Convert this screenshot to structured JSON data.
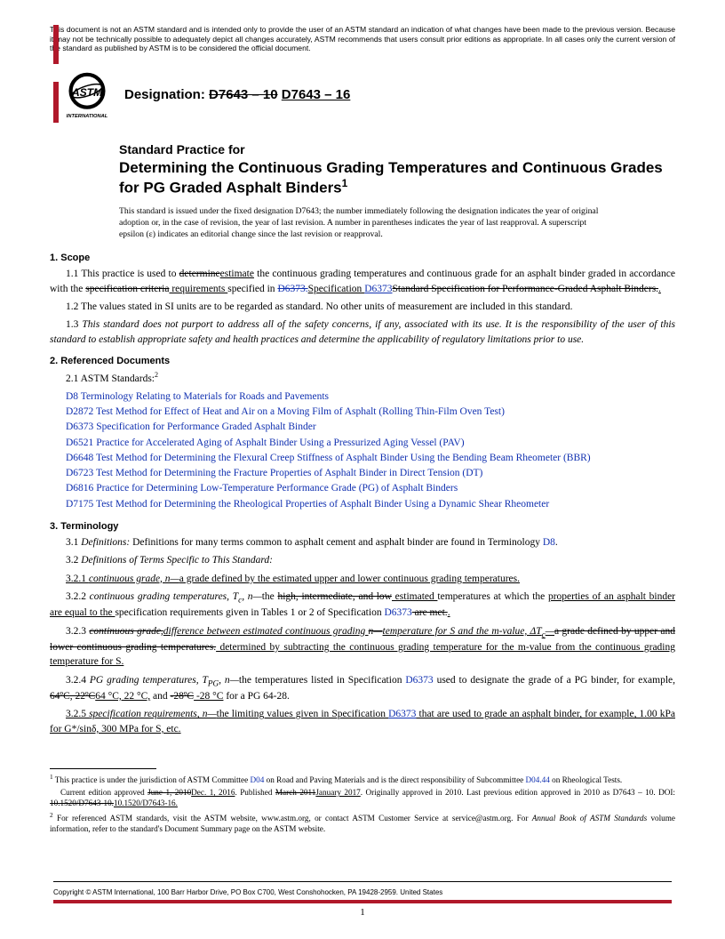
{
  "colors": {
    "red": "#b0182a",
    "link": "#1030b0",
    "text": "#000000",
    "background": "#ffffff"
  },
  "disclaimer": "This document is not an ASTM standard and is intended only to provide the user of an ASTM standard an indication of what changes have been made to the previous version. Because it may not be technically possible to adequately depict all changes accurately, ASTM recommends that users consult prior editions as appropriate. In all cases only the current version of the standard as published by ASTM is to be considered the official document.",
  "designation": {
    "label": "Designation: ",
    "old": "D7643 – 10",
    "sep": " ",
    "new": "D7643 – 16"
  },
  "logo_text": {
    "top": "ASTM",
    "bottom": "INTERNATIONAL"
  },
  "title": {
    "label": "Standard Practice for",
    "text": "Determining the Continuous Grading Temperatures and Continuous Grades for PG Graded Asphalt Binders",
    "sup": "1"
  },
  "title_note": "This standard is issued under the fixed designation D7643; the number immediately following the designation indicates the year of original adoption or, in the case of revision, the year of last revision. A number in parentheses indicates the year of last reapproval. A superscript epsilon (ε) indicates an editorial change since the last revision or reapproval.",
  "sections": {
    "s1_head": "1. Scope",
    "s1_1": {
      "lead": "1.1  This practice is used to ",
      "strike1": "determine",
      "ul1": "estimate",
      "mid1": " the continuous grading temperatures and continuous grade for an asphalt binder graded in accordance with the ",
      "strike2": "specification criteria",
      "ul2": " requirements ",
      "mid2": "specified in ",
      "link_strike": "D6373.",
      "ul3": "Specification ",
      "link2": "D6373",
      "strike_tail": "Standard Specification for Performance-Graded Asphalt Binders.",
      "ul_tail": "."
    },
    "s1_2": "1.2  The values stated in SI units are to be regarded as standard. No other units of measurement are included in this standard.",
    "s1_3": "1.3  This standard does not purport to address all of the safety concerns, if any, associated with its use. It is the responsibility of the user of this standard to establish appropriate safety and health practices and determine the applicability of regulatory limitations prior to use.",
    "s2_head": "2. Referenced Documents",
    "s2_1": "2.1  ASTM Standards:",
    "s2_1_sup": "2",
    "refs": [
      {
        "code": "D8",
        "title": "Terminology Relating to Materials for Roads and Pavements"
      },
      {
        "code": "D2872",
        "title": "Test Method for Effect of Heat and Air on a Moving Film of Asphalt (Rolling Thin-Film Oven Test)"
      },
      {
        "code": "D6373",
        "title": "Specification for Performance Graded Asphalt Binder"
      },
      {
        "code": "D6521",
        "title": "Practice for Accelerated Aging of Asphalt Binder Using a Pressurized Aging Vessel (PAV)"
      },
      {
        "code": "D6648",
        "title": "Test Method for Determining the Flexural Creep Stiffness of Asphalt Binder Using the Bending Beam Rheometer (BBR)"
      },
      {
        "code": "D6723",
        "title": "Test Method for Determining the Fracture Properties of Asphalt Binder in Direct Tension (DT)"
      },
      {
        "code": "D6816",
        "title": "Practice for Determining Low-Temperature Performance Grade (PG) of Asphalt Binders"
      },
      {
        "code": "D7175",
        "title": "Test Method for Determining the Rheological Properties of Asphalt Binder Using a Dynamic Shear Rheometer"
      }
    ],
    "s3_head": "3. Terminology",
    "s3_1a": "3.1  ",
    "s3_1b": "Definitions:",
    "s3_1c": " Definitions for many terms common to asphalt cement and asphalt binder are found in Terminology ",
    "s3_1_link": "D8",
    "s3_1d": ".",
    "s3_2": "3.2  Definitions of Terms Specific to This Standard:",
    "s3_2_1": "3.2.1  continuous grade, n—a grade defined by the estimated upper and lower continuous grading temperatures.",
    "s3_2_2": {
      "lead": "3.2.2  ",
      "ital": "continuous grading temperatures, T",
      "sub": "c",
      "ital2": ", n—",
      "mid1": "the ",
      "strike1": "high, intermediate, and low",
      "ul1": " estimated ",
      "mid2": "temperatures at which the ",
      "ul2": "properties of an asphalt binder are equal to the ",
      "mid3": "specification requirements given in Tables 1 or 2 of Specification ",
      "link": "D6373",
      "strike2": " are met.",
      "ul3": "."
    },
    "s3_2_3": {
      "lead": "3.2.3  ",
      "strike_ital": "continuous grade,",
      "ul_ital": "difference between estimated continuous grading ",
      "strike_ital2": "n—",
      "ul_ital2": "temperature for S and the m-value, ΔT",
      "ul_sub": "c",
      "ul_ital3": "—",
      "strike_mid": "a grade defined by upper and lower continuous grading temperatures.",
      "ul_mid": " determined by subtracting the continuous grading temperature for the m-value from the continuous grading temperature for S."
    },
    "s3_2_4": {
      "lead": "3.2.4  ",
      "ital": "PG grading temperatures, T",
      "sub": "PG",
      "ital2": ", n—",
      "mid1": "the temperatures listed in Specification ",
      "link": "D6373",
      "mid2": " used to designate the grade of a PG binder, for example, ",
      "strike1": "64ºC, 22ºC",
      "ul1": "64 °C, 22 °C,",
      "mid3": " and ",
      "strike2": "-28ºC",
      "ul2": " -28 °C",
      "tail": " for a PG 64-28."
    },
    "s3_2_5": {
      "lead": "3.2.5  ",
      "ul_ital": "specification requirements, n—",
      "ul_mid": "the limiting values given in Specification ",
      "link": "D6373",
      "ul_tail": " that are used to grade an asphalt binder, for example, 1.00 kPa for G*/sinδ, 300 MPa for S, etc."
    }
  },
  "footnotes": {
    "f1": {
      "sup": "1",
      "a": " This practice is under the jurisdiction of ASTM Committee ",
      "l1": "D04",
      "b": " on Road and Paving Materials and is the direct responsibility of Subcommittee ",
      "l2": "D04.44",
      "c": " on Rheological Tests.",
      "d": "Current edition approved ",
      "strike1": "June 1, 2010",
      "ul1": "Dec. 1, 2016",
      "e": ". Published ",
      "strike2": "March 2011",
      "ul2": "January 2017",
      "f": ". Originally approved in 2010. Last previous edition approved in 2010 as D7643 – 10. DOI: ",
      "strike3": "10.1520/D7643-10.",
      "ul3": "10.1520/D7643-16."
    },
    "f2": {
      "sup": "2",
      "a": " For referenced ASTM standards, visit the ASTM website, www.astm.org, or contact ASTM Customer Service at service@astm.org. For ",
      "ital": "Annual Book of ASTM Standards",
      "b": " volume information, refer to the standard's Document Summary page on the ASTM website."
    }
  },
  "copyright": "Copyright © ASTM International, 100 Barr Harbor Drive, PO Box C700, West Conshohocken, PA 19428-2959. United States",
  "page_number": "1"
}
